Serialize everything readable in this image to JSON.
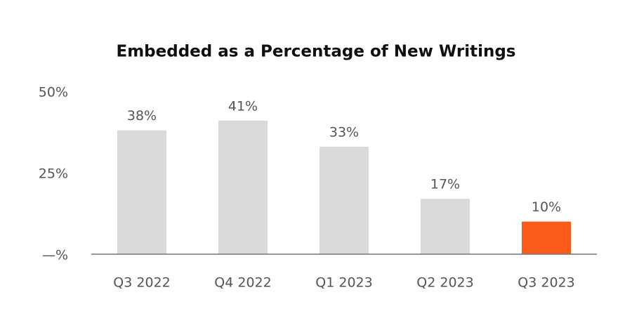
{
  "chart_data": {
    "type": "bar",
    "title": "Embedded as a Percentage of New Writings",
    "categories": [
      "Q3 2022",
      "Q4 2022",
      "Q1 2023",
      "Q2 2023",
      "Q3 2023"
    ],
    "values": [
      38,
      41,
      33,
      17,
      10
    ],
    "value_labels": [
      "38%",
      "41%",
      "33%",
      "17%",
      "10%"
    ],
    "colors": [
      "#d9d9d9",
      "#d9d9d9",
      "#d9d9d9",
      "#d9d9d9",
      "#fc5a1a"
    ],
    "ylim": [
      0,
      50
    ],
    "yticks": [
      {
        "value": 0,
        "label": "—%"
      },
      {
        "value": 25,
        "label": "25%"
      },
      {
        "value": 50,
        "label": "50%"
      }
    ],
    "grid": false
  }
}
